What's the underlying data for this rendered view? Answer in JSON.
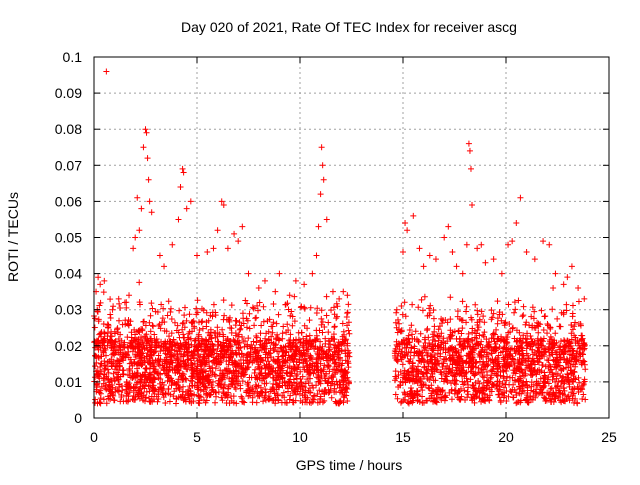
{
  "chart_data": {
    "type": "scatter",
    "title": "Day 020 of 2021, Rate Of TEC Index for receiver ascg",
    "xlabel": "GPS time / hours",
    "ylabel": "ROTI / TECUs",
    "xlim": [
      0,
      25
    ],
    "ylim": [
      0,
      0.1
    ],
    "x_ticks": [
      0,
      5,
      10,
      15,
      20,
      25
    ],
    "x_tick_labels": [
      "0",
      "5",
      "10",
      "15",
      "20",
      "25"
    ],
    "y_ticks": [
      0,
      0.01,
      0.02,
      0.03,
      0.04,
      0.05,
      0.06,
      0.07,
      0.08,
      0.09,
      0.1
    ],
    "y_tick_labels": [
      "0",
      "0.01",
      "0.02",
      "0.03",
      "0.04",
      "0.05",
      "0.06",
      "0.07",
      "0.08",
      "0.09",
      "0.1"
    ],
    "grid": true,
    "marker": "+",
    "marker_color": "#ff0000",
    "data_gap_hours": [
      12.4,
      14.6
    ],
    "series": [
      {
        "points": [
          [
            0.1,
            0.035
          ],
          [
            0.2,
            0.039
          ],
          [
            0.3,
            0.037
          ],
          [
            0.5,
            0.038
          ],
          [
            0.6,
            0.096
          ],
          [
            0.9,
            0.03
          ],
          [
            1.2,
            0.033
          ],
          [
            1.5,
            0.032
          ],
          [
            1.7,
            0.034
          ],
          [
            1.9,
            0.047
          ],
          [
            2.0,
            0.05
          ],
          [
            2.1,
            0.061
          ],
          [
            2.2,
            0.052
          ],
          [
            2.3,
            0.058
          ],
          [
            2.4,
            0.075
          ],
          [
            2.5,
            0.08
          ],
          [
            2.55,
            0.079
          ],
          [
            2.6,
            0.072
          ],
          [
            2.65,
            0.066
          ],
          [
            2.7,
            0.06
          ],
          [
            2.8,
            0.057
          ],
          [
            3.2,
            0.045
          ],
          [
            3.4,
            0.042
          ],
          [
            3.8,
            0.048
          ],
          [
            4.1,
            0.055
          ],
          [
            4.2,
            0.064
          ],
          [
            4.3,
            0.069
          ],
          [
            4.35,
            0.068
          ],
          [
            4.5,
            0.058
          ],
          [
            4.7,
            0.06
          ],
          [
            5.0,
            0.045
          ],
          [
            5.5,
            0.046
          ],
          [
            5.8,
            0.047
          ],
          [
            6.0,
            0.052
          ],
          [
            6.2,
            0.06
          ],
          [
            6.3,
            0.059
          ],
          [
            6.5,
            0.047
          ],
          [
            6.8,
            0.051
          ],
          [
            7.0,
            0.049
          ],
          [
            7.2,
            0.053
          ],
          [
            7.5,
            0.04
          ],
          [
            8.0,
            0.036
          ],
          [
            8.3,
            0.038
          ],
          [
            8.8,
            0.035
          ],
          [
            9.0,
            0.04
          ],
          [
            9.5,
            0.034
          ],
          [
            9.8,
            0.038
          ],
          [
            10.2,
            0.037
          ],
          [
            10.6,
            0.04
          ],
          [
            10.8,
            0.045
          ],
          [
            10.9,
            0.053
          ],
          [
            11.0,
            0.062
          ],
          [
            11.05,
            0.075
          ],
          [
            11.1,
            0.07
          ],
          [
            11.15,
            0.066
          ],
          [
            11.3,
            0.055
          ],
          [
            11.6,
            0.035
          ],
          [
            11.9,
            0.033
          ],
          [
            12.1,
            0.035
          ],
          [
            12.3,
            0.034
          ],
          [
            14.7,
            0.03
          ],
          [
            15.0,
            0.046
          ],
          [
            15.1,
            0.054
          ],
          [
            15.2,
            0.052
          ],
          [
            15.5,
            0.056
          ],
          [
            15.8,
            0.047
          ],
          [
            16.0,
            0.042
          ],
          [
            16.3,
            0.045
          ],
          [
            16.6,
            0.044
          ],
          [
            17.0,
            0.05
          ],
          [
            17.2,
            0.053
          ],
          [
            17.4,
            0.046
          ],
          [
            17.6,
            0.042
          ],
          [
            17.9,
            0.04
          ],
          [
            18.1,
            0.048
          ],
          [
            18.2,
            0.076
          ],
          [
            18.25,
            0.074
          ],
          [
            18.3,
            0.069
          ],
          [
            18.35,
            0.059
          ],
          [
            18.6,
            0.047
          ],
          [
            18.8,
            0.048
          ],
          [
            19.0,
            0.043
          ],
          [
            19.4,
            0.044
          ],
          [
            19.8,
            0.04
          ],
          [
            20.1,
            0.048
          ],
          [
            20.3,
            0.049
          ],
          [
            20.5,
            0.054
          ],
          [
            20.7,
            0.061
          ],
          [
            21.0,
            0.046
          ],
          [
            21.4,
            0.044
          ],
          [
            21.8,
            0.049
          ],
          [
            22.1,
            0.048
          ],
          [
            22.4,
            0.04
          ],
          [
            22.8,
            0.037
          ],
          [
            23.2,
            0.042
          ],
          [
            23.5,
            0.036
          ],
          [
            23.8,
            0.033
          ]
        ]
      }
    ]
  }
}
